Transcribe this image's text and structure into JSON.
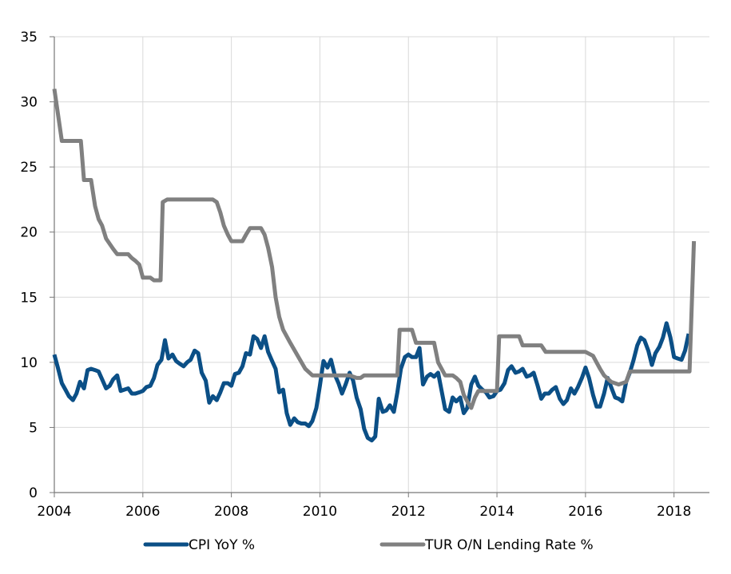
{
  "chart_data": {
    "type": "line",
    "title": "",
    "xlabel": "",
    "ylabel": "",
    "xlim": [
      2004,
      2018.8
    ],
    "ylim": [
      0,
      35
    ],
    "x_ticks": [
      2004,
      2006,
      2008,
      2010,
      2012,
      2014,
      2016,
      2018
    ],
    "x_tick_labels": [
      "2004",
      "2006",
      "2008",
      "2010",
      "2012",
      "2014",
      "2016",
      "2018"
    ],
    "y_ticks": [
      0,
      5,
      10,
      15,
      20,
      25,
      30,
      35
    ],
    "y_tick_labels": [
      "0",
      "5",
      "10",
      "15",
      "20",
      "25",
      "30",
      "35"
    ],
    "grid": true,
    "legend_position": "bottom",
    "series": [
      {
        "name": "CPI YoY %",
        "color": "#0b4f86",
        "points": [
          [
            2004.0,
            10.6
          ],
          [
            2004.08,
            9.6
          ],
          [
            2004.17,
            8.4
          ],
          [
            2004.25,
            7.9
          ],
          [
            2004.33,
            7.4
          ],
          [
            2004.42,
            7.1
          ],
          [
            2004.5,
            7.6
          ],
          [
            2004.58,
            8.5
          ],
          [
            2004.67,
            8.0
          ],
          [
            2004.75,
            9.4
          ],
          [
            2004.83,
            9.5
          ],
          [
            2004.92,
            9.4
          ],
          [
            2005.0,
            9.3
          ],
          [
            2005.08,
            8.7
          ],
          [
            2005.17,
            8.0
          ],
          [
            2005.25,
            8.2
          ],
          [
            2005.33,
            8.7
          ],
          [
            2005.42,
            9.0
          ],
          [
            2005.5,
            7.8
          ],
          [
            2005.58,
            7.9
          ],
          [
            2005.67,
            8.0
          ],
          [
            2005.75,
            7.6
          ],
          [
            2005.83,
            7.6
          ],
          [
            2005.92,
            7.7
          ],
          [
            2006.0,
            7.8
          ],
          [
            2006.08,
            8.1
          ],
          [
            2006.17,
            8.2
          ],
          [
            2006.25,
            8.8
          ],
          [
            2006.33,
            9.8
          ],
          [
            2006.42,
            10.2
          ],
          [
            2006.5,
            11.7
          ],
          [
            2006.58,
            10.3
          ],
          [
            2006.67,
            10.6
          ],
          [
            2006.75,
            10.1
          ],
          [
            2006.83,
            9.9
          ],
          [
            2006.92,
            9.7
          ],
          [
            2007.0,
            10.0
          ],
          [
            2007.08,
            10.2
          ],
          [
            2007.17,
            10.9
          ],
          [
            2007.25,
            10.7
          ],
          [
            2007.33,
            9.2
          ],
          [
            2007.42,
            8.6
          ],
          [
            2007.5,
            6.9
          ],
          [
            2007.58,
            7.4
          ],
          [
            2007.67,
            7.1
          ],
          [
            2007.75,
            7.7
          ],
          [
            2007.83,
            8.4
          ],
          [
            2007.92,
            8.4
          ],
          [
            2008.0,
            8.2
          ],
          [
            2008.08,
            9.1
          ],
          [
            2008.17,
            9.2
          ],
          [
            2008.25,
            9.7
          ],
          [
            2008.33,
            10.7
          ],
          [
            2008.42,
            10.6
          ],
          [
            2008.5,
            12.0
          ],
          [
            2008.58,
            11.8
          ],
          [
            2008.67,
            11.1
          ],
          [
            2008.75,
            12.0
          ],
          [
            2008.83,
            10.8
          ],
          [
            2008.92,
            10.1
          ],
          [
            2009.0,
            9.5
          ],
          [
            2009.08,
            7.7
          ],
          [
            2009.17,
            7.9
          ],
          [
            2009.25,
            6.1
          ],
          [
            2009.33,
            5.2
          ],
          [
            2009.42,
            5.7
          ],
          [
            2009.5,
            5.4
          ],
          [
            2009.58,
            5.3
          ],
          [
            2009.67,
            5.3
          ],
          [
            2009.75,
            5.1
          ],
          [
            2009.83,
            5.5
          ],
          [
            2009.92,
            6.5
          ],
          [
            2010.0,
            8.2
          ],
          [
            2010.08,
            10.1
          ],
          [
            2010.17,
            9.6
          ],
          [
            2010.25,
            10.2
          ],
          [
            2010.33,
            9.1
          ],
          [
            2010.42,
            8.4
          ],
          [
            2010.5,
            7.6
          ],
          [
            2010.58,
            8.3
          ],
          [
            2010.67,
            9.2
          ],
          [
            2010.75,
            8.6
          ],
          [
            2010.83,
            7.3
          ],
          [
            2010.92,
            6.4
          ],
          [
            2011.0,
            4.9
          ],
          [
            2011.08,
            4.2
          ],
          [
            2011.17,
            4.0
          ],
          [
            2011.25,
            4.3
          ],
          [
            2011.33,
            7.2
          ],
          [
            2011.42,
            6.2
          ],
          [
            2011.5,
            6.3
          ],
          [
            2011.58,
            6.7
          ],
          [
            2011.67,
            6.2
          ],
          [
            2011.75,
            7.7
          ],
          [
            2011.83,
            9.5
          ],
          [
            2011.92,
            10.4
          ],
          [
            2012.0,
            10.6
          ],
          [
            2012.08,
            10.4
          ],
          [
            2012.17,
            10.4
          ],
          [
            2012.25,
            11.1
          ],
          [
            2012.33,
            8.3
          ],
          [
            2012.42,
            8.9
          ],
          [
            2012.5,
            9.1
          ],
          [
            2012.58,
            8.9
          ],
          [
            2012.67,
            9.2
          ],
          [
            2012.75,
            7.8
          ],
          [
            2012.83,
            6.4
          ],
          [
            2012.92,
            6.2
          ],
          [
            2013.0,
            7.3
          ],
          [
            2013.08,
            7.0
          ],
          [
            2013.17,
            7.3
          ],
          [
            2013.25,
            6.1
          ],
          [
            2013.33,
            6.5
          ],
          [
            2013.42,
            8.3
          ],
          [
            2013.5,
            8.9
          ],
          [
            2013.58,
            8.2
          ],
          [
            2013.67,
            7.9
          ],
          [
            2013.75,
            7.7
          ],
          [
            2013.83,
            7.3
          ],
          [
            2013.92,
            7.4
          ],
          [
            2014.0,
            7.8
          ],
          [
            2014.08,
            7.9
          ],
          [
            2014.17,
            8.4
          ],
          [
            2014.25,
            9.4
          ],
          [
            2014.33,
            9.7
          ],
          [
            2014.42,
            9.2
          ],
          [
            2014.5,
            9.3
          ],
          [
            2014.58,
            9.5
          ],
          [
            2014.67,
            8.9
          ],
          [
            2014.75,
            9.0
          ],
          [
            2014.83,
            9.2
          ],
          [
            2014.92,
            8.2
          ],
          [
            2015.0,
            7.2
          ],
          [
            2015.08,
            7.6
          ],
          [
            2015.17,
            7.6
          ],
          [
            2015.25,
            7.9
          ],
          [
            2015.33,
            8.1
          ],
          [
            2015.42,
            7.2
          ],
          [
            2015.5,
            6.8
          ],
          [
            2015.58,
            7.1
          ],
          [
            2015.67,
            8.0
          ],
          [
            2015.75,
            7.6
          ],
          [
            2015.83,
            8.1
          ],
          [
            2015.92,
            8.8
          ],
          [
            2016.0,
            9.6
          ],
          [
            2016.08,
            8.8
          ],
          [
            2016.17,
            7.5
          ],
          [
            2016.25,
            6.6
          ],
          [
            2016.33,
            6.6
          ],
          [
            2016.42,
            7.6
          ],
          [
            2016.5,
            8.8
          ],
          [
            2016.58,
            8.1
          ],
          [
            2016.67,
            7.3
          ],
          [
            2016.75,
            7.2
          ],
          [
            2016.83,
            7.0
          ],
          [
            2016.92,
            8.5
          ],
          [
            2017.0,
            9.2
          ],
          [
            2017.08,
            10.1
          ],
          [
            2017.17,
            11.3
          ],
          [
            2017.25,
            11.9
          ],
          [
            2017.33,
            11.7
          ],
          [
            2017.42,
            10.9
          ],
          [
            2017.5,
            9.8
          ],
          [
            2017.58,
            10.7
          ],
          [
            2017.67,
            11.2
          ],
          [
            2017.75,
            11.9
          ],
          [
            2017.83,
            13.0
          ],
          [
            2017.92,
            11.9
          ],
          [
            2018.0,
            10.4
          ],
          [
            2018.08,
            10.3
          ],
          [
            2018.17,
            10.2
          ],
          [
            2018.25,
            10.9
          ],
          [
            2018.33,
            12.2
          ]
        ]
      },
      {
        "name": "TUR O/N Lending Rate %",
        "color": "#808080",
        "points": [
          [
            2004.0,
            31.0
          ],
          [
            2004.17,
            27.0
          ],
          [
            2004.5,
            27.0
          ],
          [
            2004.6,
            27.0
          ],
          [
            2004.67,
            24.0
          ],
          [
            2004.83,
            24.0
          ],
          [
            2004.92,
            22.0
          ],
          [
            2005.0,
            21.0
          ],
          [
            2005.08,
            20.5
          ],
          [
            2005.17,
            19.5
          ],
          [
            2005.33,
            18.7
          ],
          [
            2005.42,
            18.3
          ],
          [
            2005.58,
            18.3
          ],
          [
            2005.67,
            18.3
          ],
          [
            2005.75,
            18.0
          ],
          [
            2005.83,
            17.8
          ],
          [
            2005.92,
            17.5
          ],
          [
            2006.0,
            16.5
          ],
          [
            2006.17,
            16.5
          ],
          [
            2006.25,
            16.3
          ],
          [
            2006.4,
            16.3
          ],
          [
            2006.45,
            22.3
          ],
          [
            2006.55,
            22.5
          ],
          [
            2007.58,
            22.5
          ],
          [
            2007.67,
            22.3
          ],
          [
            2007.75,
            21.5
          ],
          [
            2007.83,
            20.5
          ],
          [
            2007.92,
            19.8
          ],
          [
            2008.0,
            19.3
          ],
          [
            2008.25,
            19.3
          ],
          [
            2008.33,
            19.8
          ],
          [
            2008.42,
            20.3
          ],
          [
            2008.67,
            20.3
          ],
          [
            2008.75,
            19.8
          ],
          [
            2008.83,
            18.8
          ],
          [
            2008.92,
            17.3
          ],
          [
            2009.0,
            15.0
          ],
          [
            2009.08,
            13.5
          ],
          [
            2009.17,
            12.5
          ],
          [
            2009.33,
            11.5
          ],
          [
            2009.5,
            10.5
          ],
          [
            2009.67,
            9.5
          ],
          [
            2009.83,
            9.0
          ],
          [
            2010.0,
            9.0
          ],
          [
            2010.5,
            9.0
          ],
          [
            2010.67,
            9.0
          ],
          [
            2010.83,
            8.8
          ],
          [
            2010.92,
            8.8
          ],
          [
            2011.0,
            9.0
          ],
          [
            2011.5,
            9.0
          ],
          [
            2011.75,
            9.0
          ],
          [
            2011.8,
            12.5
          ],
          [
            2012.0,
            12.5
          ],
          [
            2012.08,
            12.5
          ],
          [
            2012.17,
            11.5
          ],
          [
            2012.33,
            11.5
          ],
          [
            2012.58,
            11.5
          ],
          [
            2012.67,
            10.0
          ],
          [
            2012.83,
            9.0
          ],
          [
            2012.92,
            9.0
          ],
          [
            2013.0,
            9.0
          ],
          [
            2013.08,
            8.8
          ],
          [
            2013.17,
            8.5
          ],
          [
            2013.25,
            7.5
          ],
          [
            2013.33,
            7.0
          ],
          [
            2013.42,
            6.5
          ],
          [
            2013.5,
            7.3
          ],
          [
            2013.58,
            7.8
          ],
          [
            2013.83,
            7.8
          ],
          [
            2014.0,
            7.8
          ],
          [
            2014.05,
            12.0
          ],
          [
            2014.5,
            12.0
          ],
          [
            2014.58,
            11.3
          ],
          [
            2014.75,
            11.3
          ],
          [
            2015.0,
            11.3
          ],
          [
            2015.1,
            10.8
          ],
          [
            2015.5,
            10.8
          ],
          [
            2016.0,
            10.8
          ],
          [
            2016.17,
            10.5
          ],
          [
            2016.25,
            10.0
          ],
          [
            2016.33,
            9.5
          ],
          [
            2016.42,
            9.0
          ],
          [
            2016.58,
            8.5
          ],
          [
            2016.75,
            8.3
          ],
          [
            2016.92,
            8.5
          ],
          [
            2017.0,
            9.3
          ],
          [
            2018.0,
            9.3
          ],
          [
            2018.35,
            9.3
          ],
          [
            2018.45,
            19.3
          ]
        ]
      }
    ]
  }
}
